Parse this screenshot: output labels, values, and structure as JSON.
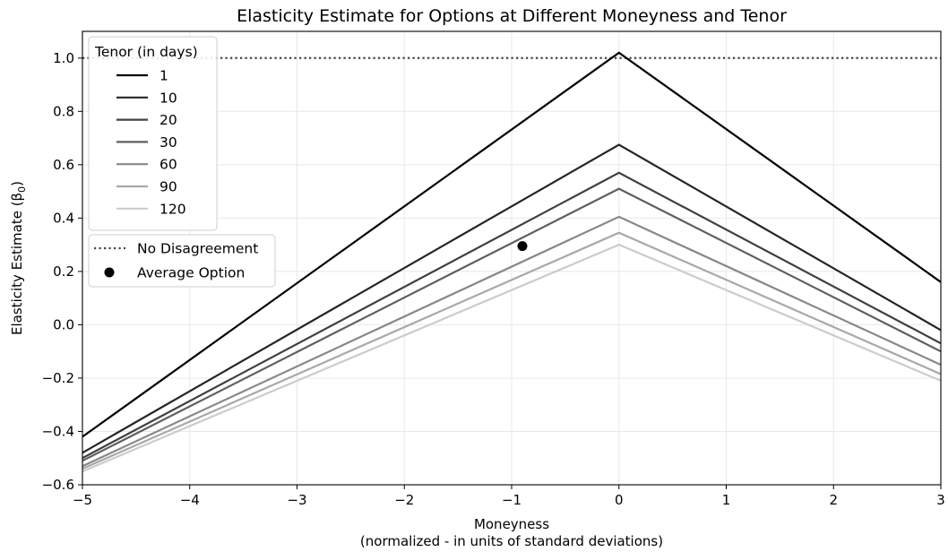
{
  "chart_data": {
    "type": "line",
    "title": "Elasticity Estimate for Options at Different Moneyness and Tenor",
    "xlabel_line1": "Moneyness",
    "xlabel_line2": "(normalized - in units of standard deviations)",
    "ylabel": "Elasticity Estimate (β",
    "ylabel_sub": "0",
    "ylabel_close": ")",
    "xlim": [
      -5,
      3
    ],
    "ylim": [
      -0.6,
      1.1
    ],
    "x_ticks": [
      -5,
      -4,
      -3,
      -2,
      -1,
      0,
      1,
      2,
      3
    ],
    "x_tick_labels": [
      "−5",
      "−4",
      "−3",
      "−2",
      "−1",
      "0",
      "1",
      "2",
      "3"
    ],
    "y_ticks": [
      -0.6,
      -0.4,
      -0.2,
      0.0,
      0.2,
      0.4,
      0.6,
      0.8,
      1.0
    ],
    "y_tick_labels": [
      "−0.6",
      "−0.4",
      "−0.2",
      "0.0",
      "0.2",
      "0.4",
      "0.6",
      "0.8",
      "1.0"
    ],
    "grid": true,
    "legend_title": "Tenor (in days)",
    "legend_placement": "upper-left",
    "x": [
      -5,
      0,
      3
    ],
    "series": [
      {
        "name": "1",
        "color": "#000000",
        "values": [
          -0.42,
          1.02,
          0.16
        ]
      },
      {
        "name": "10",
        "color": "#252525",
        "values": [
          -0.48,
          0.675,
          -0.02
        ]
      },
      {
        "name": "20",
        "color": "#404040",
        "values": [
          -0.5,
          0.57,
          -0.07
        ]
      },
      {
        "name": "30",
        "color": "#5f5f5f",
        "values": [
          -0.51,
          0.51,
          -0.1
        ]
      },
      {
        "name": "60",
        "color": "#888888",
        "values": [
          -0.53,
          0.405,
          -0.15
        ]
      },
      {
        "name": "90",
        "color": "#a8a8a8",
        "values": [
          -0.54,
          0.345,
          -0.185
        ]
      },
      {
        "name": "120",
        "color": "#cccccc",
        "values": [
          -0.55,
          0.3,
          -0.21
        ]
      }
    ],
    "reference_line": {
      "name": "No Disagreement",
      "y": 1.0,
      "style": "dotted",
      "color": "#444444"
    },
    "points": [
      {
        "name": "Average Option",
        "x": -0.9,
        "y": 0.295,
        "color": "#000000"
      }
    ]
  }
}
